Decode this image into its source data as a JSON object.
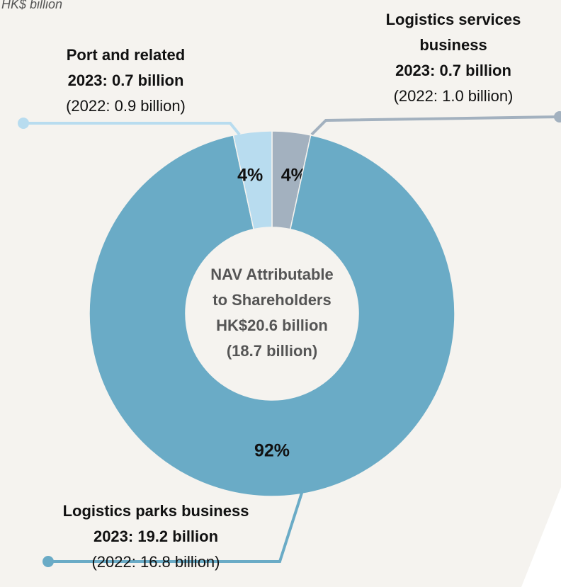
{
  "chart_data": {
    "type": "pie",
    "donut": true,
    "subtitle": "HK$ billion",
    "categories": [
      "Logistics services business",
      "Logistics parks business",
      "Port and related"
    ],
    "values": [
      0.7,
      19.2,
      0.7
    ],
    "value_labels": [
      "2023: 0.7 billion",
      "2023: 19.2 billion",
      "2023:  0.7 billion"
    ],
    "prior_labels": [
      "(2022: 1.0 billion)",
      "(2022: 16.8 billion)",
      "(2022: 0.9 billion)"
    ],
    "percents": [
      4,
      92,
      4
    ],
    "percent_labels": [
      "4%",
      "92%",
      "4%"
    ],
    "colors": [
      "#a3b1bf",
      "#6aabc6",
      "#b8dcef"
    ],
    "center_label": [
      "NAV Attributable",
      "to Shareholders",
      "HK$20.6 billion",
      "(18.7 billion)"
    ]
  }
}
